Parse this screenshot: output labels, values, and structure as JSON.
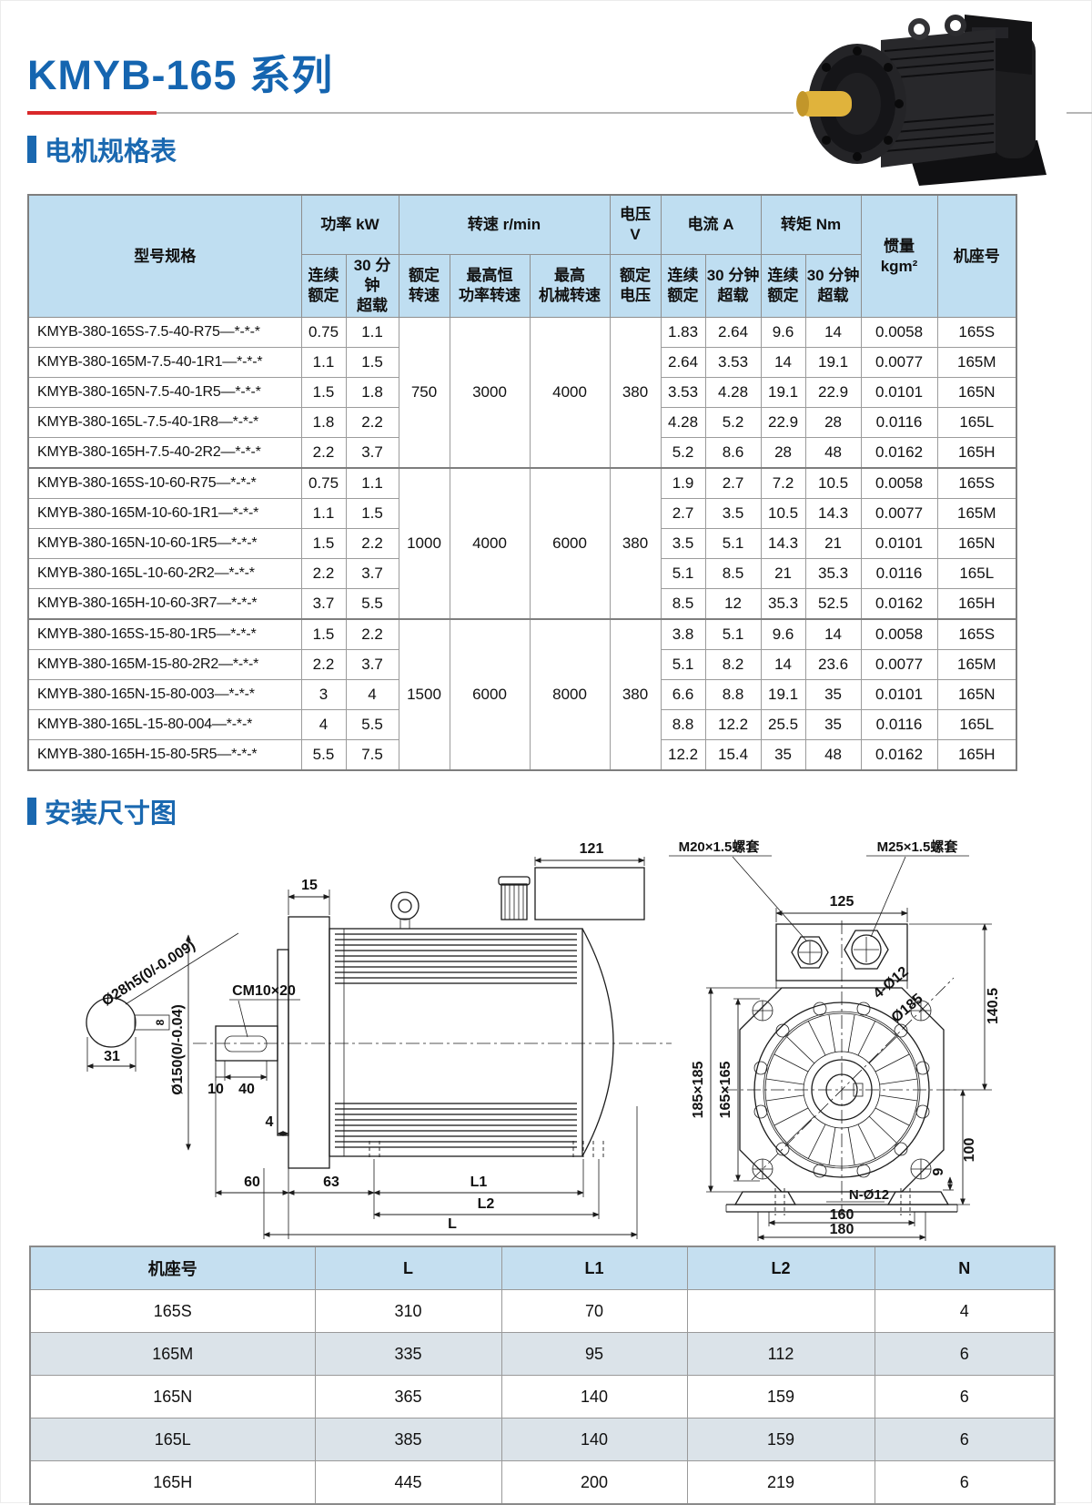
{
  "page": {
    "title": "KMYB-165 系列"
  },
  "sections": {
    "spec": "电机规格表",
    "mounting": "安装尺寸图"
  },
  "spec_table": {
    "headers": {
      "model": "型号规格",
      "power": "功率 kW",
      "speed": "转速 r/min",
      "voltage": "电压\nV",
      "current": "电流 A",
      "torque": "转矩 Nm",
      "inertia": "惯量\nkgm²",
      "frame": "机座号",
      "cont_rated": "连续\n额定",
      "overload_30": "30 分钟\n超载",
      "rated_speed": "额定\n转速",
      "max_const_power_speed": "最高恒\n功率转速",
      "max_mech_speed": "最高\n机械转速",
      "rated_voltage": "额定\n电压"
    },
    "groups": [
      {
        "rated_speed": "750",
        "max_const_power_speed": "3000",
        "max_mech_speed": "4000",
        "voltage": "380",
        "rows": [
          {
            "model": "KMYB-380-165S-7.5-40-R75—*-*-*",
            "power_cont": "0.75",
            "power_overload": "1.1",
            "current_cont": "1.83",
            "current_overload": "2.64",
            "torque_cont": "9.6",
            "torque_overload": "14",
            "inertia": "0.0058",
            "frame": "165S"
          },
          {
            "model": "KMYB-380-165M-7.5-40-1R1—*-*-*",
            "power_cont": "1.1",
            "power_overload": "1.5",
            "current_cont": "2.64",
            "current_overload": "3.53",
            "torque_cont": "14",
            "torque_overload": "19.1",
            "inertia": "0.0077",
            "frame": "165M"
          },
          {
            "model": "KMYB-380-165N-7.5-40-1R5—*-*-*",
            "power_cont": "1.5",
            "power_overload": "1.8",
            "current_cont": "3.53",
            "current_overload": "4.28",
            "torque_cont": "19.1",
            "torque_overload": "22.9",
            "inertia": "0.0101",
            "frame": "165N"
          },
          {
            "model": "KMYB-380-165L-7.5-40-1R8—*-*-*",
            "power_cont": "1.8",
            "power_overload": "2.2",
            "current_cont": "4.28",
            "current_overload": "5.2",
            "torque_cont": "22.9",
            "torque_overload": "28",
            "inertia": "0.0116",
            "frame": "165L"
          },
          {
            "model": "KMYB-380-165H-7.5-40-2R2—*-*-*",
            "power_cont": "2.2",
            "power_overload": "3.7",
            "current_cont": "5.2",
            "current_overload": "8.6",
            "torque_cont": "28",
            "torque_overload": "48",
            "inertia": "0.0162",
            "frame": "165H"
          }
        ]
      },
      {
        "rated_speed": "1000",
        "max_const_power_speed": "4000",
        "max_mech_speed": "6000",
        "voltage": "380",
        "rows": [
          {
            "model": "KMYB-380-165S-10-60-R75—*-*-*",
            "power_cont": "0.75",
            "power_overload": "1.1",
            "current_cont": "1.9",
            "current_overload": "2.7",
            "torque_cont": "7.2",
            "torque_overload": "10.5",
            "inertia": "0.0058",
            "frame": "165S"
          },
          {
            "model": "KMYB-380-165M-10-60-1R1—*-*-*",
            "power_cont": "1.1",
            "power_overload": "1.5",
            "current_cont": "2.7",
            "current_overload": "3.5",
            "torque_cont": "10.5",
            "torque_overload": "14.3",
            "inertia": "0.0077",
            "frame": "165M"
          },
          {
            "model": "KMYB-380-165N-10-60-1R5—*-*-*",
            "power_cont": "1.5",
            "power_overload": "2.2",
            "current_cont": "3.5",
            "current_overload": "5.1",
            "torque_cont": "14.3",
            "torque_overload": "21",
            "inertia": "0.0101",
            "frame": "165N"
          },
          {
            "model": "KMYB-380-165L-10-60-2R2—*-*-*",
            "power_cont": "2.2",
            "power_overload": "3.7",
            "current_cont": "5.1",
            "current_overload": "8.5",
            "torque_cont": "21",
            "torque_overload": "35.3",
            "inertia": "0.0116",
            "frame": "165L"
          },
          {
            "model": "KMYB-380-165H-10-60-3R7—*-*-*",
            "power_cont": "3.7",
            "power_overload": "5.5",
            "current_cont": "8.5",
            "current_overload": "12",
            "torque_cont": "35.3",
            "torque_overload": "52.5",
            "inertia": "0.0162",
            "frame": "165H"
          }
        ]
      },
      {
        "rated_speed": "1500",
        "max_const_power_speed": "6000",
        "max_mech_speed": "8000",
        "voltage": "380",
        "rows": [
          {
            "model": "KMYB-380-165S-15-80-1R5—*-*-*",
            "power_cont": "1.5",
            "power_overload": "2.2",
            "current_cont": "3.8",
            "current_overload": "5.1",
            "torque_cont": "9.6",
            "torque_overload": "14",
            "inertia": "0.0058",
            "frame": "165S"
          },
          {
            "model": "KMYB-380-165M-15-80-2R2—*-*-*",
            "power_cont": "2.2",
            "power_overload": "3.7",
            "current_cont": "5.1",
            "current_overload": "8.2",
            "torque_cont": "14",
            "torque_overload": "23.6",
            "inertia": "0.0077",
            "frame": "165M"
          },
          {
            "model": "KMYB-380-165N-15-80-003—*-*-*",
            "power_cont": "3",
            "power_overload": "4",
            "current_cont": "6.6",
            "current_overload": "8.8",
            "torque_cont": "19.1",
            "torque_overload": "35",
            "inertia": "0.0101",
            "frame": "165N"
          },
          {
            "model": "KMYB-380-165L-15-80-004—*-*-*",
            "power_cont": "4",
            "power_overload": "5.5",
            "current_cont": "8.8",
            "current_overload": "12.2",
            "torque_cont": "25.5",
            "torque_overload": "35",
            "inertia": "0.0116",
            "frame": "165L"
          },
          {
            "model": "KMYB-380-165H-15-80-5R5—*-*-*",
            "power_cont": "5.5",
            "power_overload": "7.5",
            "current_cont": "12.2",
            "current_overload": "15.4",
            "torque_cont": "35",
            "torque_overload": "48",
            "inertia": "0.0162",
            "frame": "165H"
          }
        ]
      }
    ]
  },
  "drawing": {
    "side": {
      "dim_121": "121",
      "dim_15": "15",
      "shaft_dia": "Ø28h5(0/-0.009)",
      "dim_31": "31",
      "key_width": "8",
      "keyway": "CM10×20",
      "spigot_dia": "Ø150(0/-0.04)",
      "dim_10": "10",
      "dim_40": "40",
      "dim_4": "4",
      "dim_60": "60",
      "dim_63": "63",
      "l1": "L1",
      "l2": "L2",
      "l": "L"
    },
    "front": {
      "bush_m20": "M20×1.5螺套",
      "bush_m25": "M25×1.5螺套",
      "dim_125": "125",
      "holes_4": "4-Ø12",
      "circle_185": "Ø185",
      "dim_140_5": "140.5",
      "sq_185": "185×185",
      "sq_165": "165×165",
      "dim_100": "100",
      "dim_9": "9",
      "holes_n": "N-Ø12",
      "dim_160": "160",
      "dim_180": "180"
    }
  },
  "dim_table": {
    "headers": [
      "机座号",
      "L",
      "L1",
      "L2",
      "N"
    ],
    "rows": [
      [
        "165S",
        "310",
        "70",
        "",
        "4"
      ],
      [
        "165M",
        "335",
        "95",
        "112",
        "6"
      ],
      [
        "165N",
        "365",
        "140",
        "159",
        "6"
      ],
      [
        "165L",
        "385",
        "140",
        "159",
        "6"
      ],
      [
        "165H",
        "445",
        "200",
        "219",
        "6"
      ]
    ]
  }
}
